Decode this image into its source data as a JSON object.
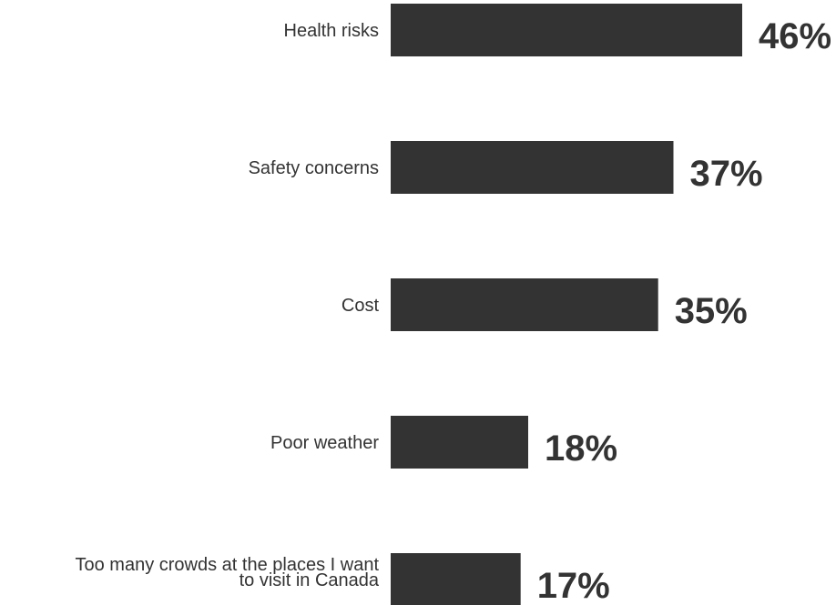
{
  "chart_data": {
    "type": "bar",
    "orientation": "horizontal",
    "categories": [
      [
        "Health risks"
      ],
      [
        "Safety concerns"
      ],
      [
        "Cost"
      ],
      [
        "Poor weather"
      ],
      [
        "Too many crowds at the places I want",
        "to visit in Canada"
      ]
    ],
    "values": [
      46,
      37,
      35,
      18,
      17
    ],
    "value_labels": [
      "46%",
      "37%",
      "35%",
      "18%",
      "17%"
    ],
    "unit": "%",
    "title": "",
    "xlabel": "",
    "ylabel": "",
    "xlim": [
      0,
      46
    ],
    "grid": false,
    "bar_color": "#333333",
    "text_color": "#333333"
  }
}
